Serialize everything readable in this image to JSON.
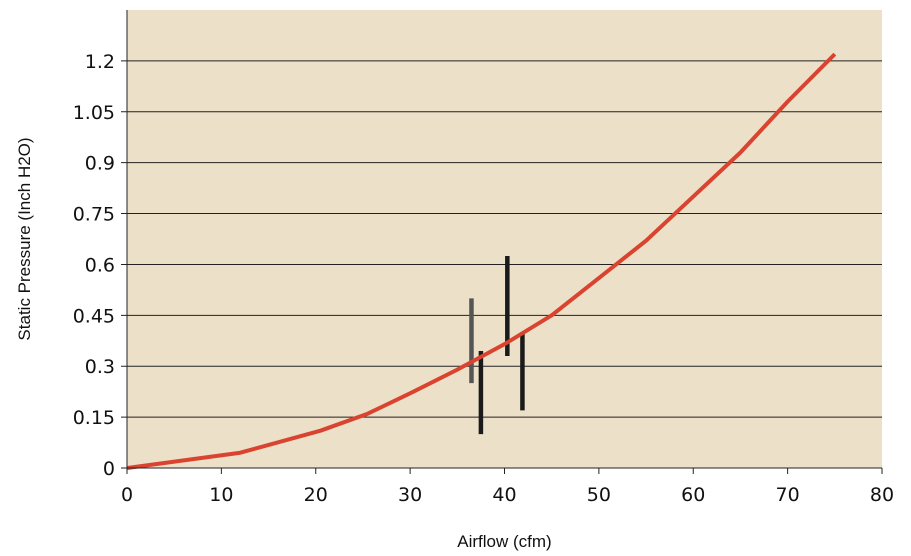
{
  "chart_data": {
    "type": "line",
    "title": "",
    "xlabel": "Airflow (cfm)",
    "ylabel": "Static Pressure (Inch H2O)",
    "xlim": [
      0,
      80
    ],
    "ylim": [
      0,
      1.2
    ],
    "x_ticks": [
      "0",
      "10",
      "20",
      "30",
      "40",
      "50",
      "60",
      "70",
      "80"
    ],
    "y_ticks": [
      "0",
      "0.15",
      "0.3",
      "0.45",
      "0.6",
      "0.75",
      "0.9",
      "1.05",
      "1.2"
    ],
    "y_tick_values": [
      0,
      0.15,
      0.3,
      0.45,
      0.6,
      0.75,
      0.9,
      1.05,
      1.2
    ],
    "x_tick_values": [
      0,
      10,
      20,
      30,
      40,
      50,
      60,
      70,
      80
    ],
    "grid": "horizontal",
    "background_color": "#ede0c8",
    "series": [
      {
        "color": "#d9432f",
        "x": [
          0,
          12,
          20.5,
          25.5,
          30,
          35,
          40,
          45,
          50,
          55,
          60,
          65,
          70,
          75
        ],
        "y": [
          0,
          0.045,
          0.11,
          0.16,
          0.22,
          0.29,
          0.365,
          0.45,
          0.56,
          0.67,
          0.8,
          0.93,
          1.08,
          1.22
        ]
      }
    ],
    "vertical_bars": [
      {
        "x": 36.5,
        "y_low": 0.25,
        "y_high": 0.5,
        "color": "#555555"
      },
      {
        "x": 37.5,
        "y_low": 0.1,
        "y_high": 0.345,
        "color": "#1a1a1a"
      },
      {
        "x": 40.3,
        "y_low": 0.33,
        "y_high": 0.625,
        "color": "#1a1a1a"
      },
      {
        "x": 41.9,
        "y_low": 0.17,
        "y_high": 0.4,
        "color": "#1a1a1a"
      }
    ]
  }
}
